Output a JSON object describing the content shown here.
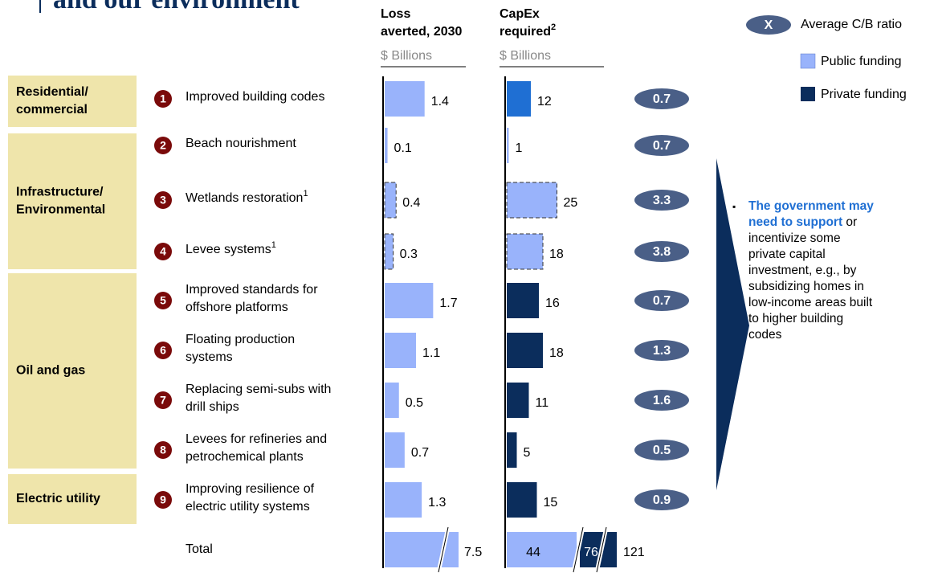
{
  "title": "and our environment",
  "columns": {
    "loss": {
      "title": [
        "Loss",
        "averted, 2030"
      ],
      "unit": "$ Billions"
    },
    "capex": {
      "title": [
        "CapEx",
        "required"
      ],
      "note": "2",
      "unit": "$ Billions"
    }
  },
  "legend": {
    "ratio_marker": "X",
    "ratio": "Average C/B ratio",
    "public": "Public funding",
    "private": "Private funding",
    "public_color": "#99b3fb",
    "private_color": "#0b2d5c"
  },
  "groups": [
    {
      "label": [
        "Residential/",
        "commercial"
      ]
    },
    {
      "label": [
        "Infrastructure/",
        "Environmental"
      ]
    },
    {
      "label": [
        "Oil and gas"
      ]
    },
    {
      "label": [
        "Electric utility"
      ]
    }
  ],
  "rows": [
    {
      "number": "1",
      "label": [
        "Improved building codes"
      ],
      "loss": 1.4,
      "capex": 12,
      "ratio": 0.7,
      "capex_color": "#1f6fd3"
    },
    {
      "number": "2",
      "label": [
        "Beach nourishment"
      ],
      "loss": 0.1,
      "capex": 1,
      "ratio": 0.7,
      "capex_color": "#99b3fb"
    },
    {
      "number": "3",
      "label": [
        "Wetlands restoration"
      ],
      "note": "1",
      "loss": 0.4,
      "capex": 25,
      "ratio": 3.3,
      "capex_color": "#99b3fb",
      "dashed": true
    },
    {
      "number": "4",
      "label": [
        "Levee systems"
      ],
      "note": "1",
      "loss": 0.3,
      "capex": 18,
      "ratio": 3.8,
      "capex_color": "#99b3fb",
      "dashed": true
    },
    {
      "number": "5",
      "label": [
        "Improved standards for",
        "offshore platforms"
      ],
      "loss": 1.7,
      "capex": 16,
      "ratio": 0.7,
      "capex_color": "#0b2d5c"
    },
    {
      "number": "6",
      "label": [
        "Floating production",
        "systems"
      ],
      "loss": 1.1,
      "capex": 18,
      "ratio": 1.3,
      "capex_color": "#0b2d5c"
    },
    {
      "number": "7",
      "label": [
        "Replacing semi-subs with",
        "drill ships"
      ],
      "loss": 0.5,
      "capex": 11,
      "ratio": 1.6,
      "capex_color": "#0b2d5c"
    },
    {
      "number": "8",
      "label": [
        "Levees for refineries and",
        "petrochemical plants"
      ],
      "loss": 0.7,
      "capex": 5,
      "ratio": 0.5,
      "capex_color": "#0b2d5c"
    },
    {
      "number": "9",
      "label": [
        "Improving resilience of",
        "electric utility systems"
      ],
      "loss": 1.3,
      "capex": 15,
      "ratio": 0.9,
      "capex_color": "#0b2d5c"
    }
  ],
  "total": {
    "label": "Total",
    "loss": 7.5,
    "capex_public": 44,
    "capex_private": 76,
    "capex": 121
  },
  "callout": {
    "highlight": "The government may need to support",
    "rest": "or incentivize some private capital investment, e.g., by subsidizing homes in low-income areas built to higher building codes"
  }
}
